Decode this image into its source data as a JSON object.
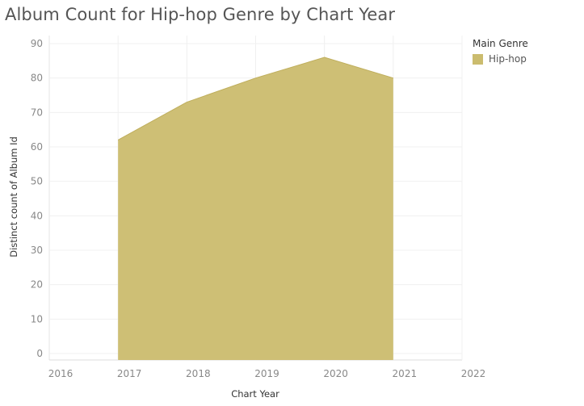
{
  "chart_data": {
    "type": "area",
    "title": "Album Count for Hip-hop Genre by Chart Year",
    "xlabel": "Chart Year",
    "ylabel": "Distinct count of Album Id",
    "x_ticks": [
      2016,
      2017,
      2018,
      2019,
      2020,
      2021,
      2022
    ],
    "xlim": [
      2016,
      2022
    ],
    "y_ticks": [
      0,
      10,
      20,
      30,
      40,
      50,
      60,
      70,
      80,
      90
    ],
    "ylim": [
      0,
      90
    ],
    "grid": true,
    "legend_position": "top-right",
    "legend_title": "Main Genre",
    "series": [
      {
        "name": "Hip-hop",
        "color": "#cbbc6e",
        "x": [
          2017,
          2018,
          2019,
          2020,
          2021
        ],
        "values": [
          62,
          73,
          80,
          86,
          80
        ]
      }
    ]
  }
}
